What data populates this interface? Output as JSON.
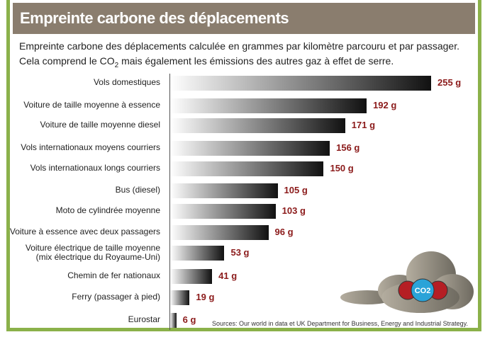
{
  "chart_data": {
    "type": "bar",
    "title": "Empreinte carbone des déplacements",
    "subtitle_line1": "Empreinte carbone des déplacements calculée en grammes par kilomètre parcouru et par passager.",
    "subtitle_line2_pre": "Cela comprend le CO",
    "subtitle_line2_sub": "2",
    "subtitle_line2_post": " mais également les émissions des autres gaz à effet de serre.",
    "unit": "g",
    "categories": [
      "Vols domestiques",
      "Voiture de taille moyenne à essence",
      "Voiture de taille moyenne diesel",
      "Vols internationaux moyens courriers",
      "Vols internationaux longs courriers",
      "Bus (diesel)",
      "Moto de cylindrée moyenne",
      "Voiture à essence avec deux passagers",
      "Voiture électrique de taille moyenne\n(mix électrique du Royaume-Uni)",
      "Chemin de fer nationaux",
      "Ferry (passager à pied)",
      "Eurostar"
    ],
    "values": [
      255,
      192,
      171,
      156,
      150,
      105,
      103,
      96,
      53,
      41,
      19,
      6
    ],
    "value_labels": [
      "255 g",
      "192 g",
      "171 g",
      "156 g",
      "150 g",
      "105 g",
      "103 g",
      "96 g",
      "53 g",
      "41 g",
      "19 g",
      "6 g"
    ],
    "xlim": [
      0,
      255
    ],
    "source": "Sources: Our world in data et UK Department for Business, Energy and Industrial Strategy.",
    "colors": {
      "value": "#8b1a1a",
      "title_bg": "#8a7d6e",
      "frame": "#8bb14a"
    },
    "icon_text": "CO2"
  }
}
